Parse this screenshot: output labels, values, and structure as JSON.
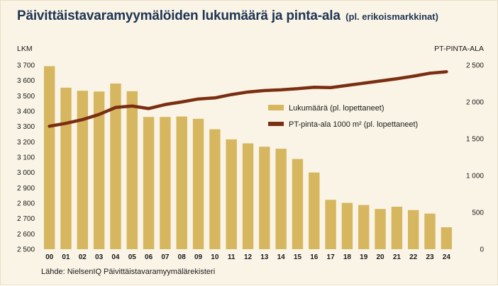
{
  "title": "Päivittäistavaramyymälöiden lukumäärä ja pinta-ala",
  "subtitle": "(pl. erikoismarkkinat)",
  "source": "Lähde: NielsenIQ Päivittäistavaramyymälärekisteri",
  "colors": {
    "bars": "#d6b65f",
    "line": "#7a2e12",
    "background": "#faf4e6",
    "title": "#1f3554",
    "highlight_ticks": "#1f3b7a"
  },
  "chart_data": {
    "type": "bar",
    "categories": [
      "00",
      "01",
      "02",
      "03",
      "04",
      "05",
      "06",
      "07",
      "08",
      "09",
      "10",
      "11",
      "12",
      "13",
      "14",
      "15",
      "16",
      "17",
      "18",
      "19",
      "20",
      "21",
      "22",
      "23",
      "24"
    ],
    "highlighted_categories": [
      "23",
      "24"
    ],
    "y_left": {
      "label": "LKM",
      "ylim": [
        2500,
        3700
      ],
      "ticks": [
        2500,
        2600,
        2700,
        2800,
        2900,
        3000,
        3100,
        3200,
        3300,
        3400,
        3500,
        3600,
        3700
      ],
      "tick_labels": [
        "2 500",
        "2 600",
        "2 700",
        "2 800",
        "2 900",
        "3 000",
        "3 100",
        "3 200",
        "3 300",
        "3 400",
        "3 500",
        "3 600",
        "3 700"
      ]
    },
    "y_right": {
      "label": "PT-PINTA-ALA",
      "ylim": [
        0,
        2500
      ],
      "ticks": [
        0,
        500,
        1000,
        1500,
        2000,
        2500
      ],
      "tick_labels": [
        "0",
        "500",
        "1 000",
        "1 500",
        "2 000",
        "2 500"
      ]
    },
    "series": [
      {
        "name": "Lukumäärä (pl. lopettaneet)",
        "type": "bar",
        "axis": "left",
        "values": [
          3693,
          3553,
          3533,
          3528,
          3580,
          3530,
          3362,
          3362,
          3365,
          3350,
          3282,
          3216,
          3190,
          3168,
          3155,
          3088,
          3000,
          2822,
          2802,
          2788,
          2762,
          2777,
          2755,
          2732,
          2643
        ]
      },
      {
        "name": "PT-pinta-ala 1000 m² (pl. lopettaneet)",
        "type": "line",
        "axis": "right",
        "values": [
          1670,
          1710,
          1760,
          1830,
          1925,
          1945,
          1910,
          1965,
          2000,
          2040,
          2055,
          2100,
          2135,
          2155,
          2165,
          2180,
          2200,
          2195,
          2225,
          2255,
          2285,
          2315,
          2350,
          2390,
          2410
        ]
      }
    ],
    "legend": {
      "position": "upper-right-inside"
    },
    "grid": false
  }
}
